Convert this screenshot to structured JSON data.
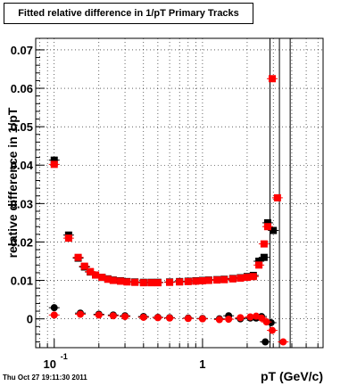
{
  "title": "Fitted relative difference in 1/pT  Primary Tracks",
  "timestamp": "Thu Oct 27 19:11:30 2011",
  "chart_data": {
    "type": "scatter",
    "title": "Fitted relative difference in 1/pT  Primary Tracks",
    "xlabel": "pT (GeV/c)",
    "ylabel": "relative difference in 1/pT",
    "xscale": "log",
    "xlim": [
      0.075,
      6.5
    ],
    "ylim": [
      -0.0075,
      0.073
    ],
    "grid": true,
    "x_tick_labels": [
      {
        "x": 0.1,
        "label": "10",
        "sup": "-1"
      },
      {
        "x": 1,
        "label": "1",
        "sup": ""
      }
    ],
    "y_ticks": [
      0,
      0.01,
      0.02,
      0.03,
      0.04,
      0.05,
      0.06,
      0.07
    ],
    "y_tick_labels": [
      "0",
      "0.01",
      "0.02",
      "0.03",
      "0.04",
      "0.05",
      "0.06",
      "0.07"
    ],
    "colors": {
      "black_series": "#000000",
      "red_series": "#ff0000"
    },
    "vertical_lines_x": [
      2.85,
      3.3,
      3.9
    ],
    "series": [
      {
        "color": "black",
        "marker": "square",
        "points": [
          [
            0.1,
            0.0413
          ],
          [
            0.125,
            0.0218
          ],
          [
            0.145,
            0.0158
          ],
          [
            0.16,
            0.0135
          ],
          [
            0.175,
            0.0122
          ],
          [
            0.19,
            0.0114
          ],
          [
            0.21,
            0.0108
          ],
          [
            0.23,
            0.0104
          ],
          [
            0.25,
            0.0101
          ],
          [
            0.28,
            0.0099
          ],
          [
            0.31,
            0.0097
          ],
          [
            0.35,
            0.0096
          ],
          [
            0.4,
            0.0095
          ],
          [
            0.45,
            0.0095
          ],
          [
            0.5,
            0.0095
          ],
          [
            0.6,
            0.0096
          ],
          [
            0.7,
            0.0097
          ],
          [
            0.8,
            0.0098
          ],
          [
            0.9,
            0.0099
          ],
          [
            1.0,
            0.01
          ],
          [
            1.1,
            0.0101
          ],
          [
            1.25,
            0.0102
          ],
          [
            1.4,
            0.0103
          ],
          [
            1.6,
            0.0105
          ],
          [
            1.8,
            0.0107
          ],
          [
            2.0,
            0.011
          ],
          [
            2.2,
            0.0113
          ],
          [
            2.4,
            0.015
          ],
          [
            2.6,
            0.016
          ],
          [
            2.75,
            0.025
          ],
          [
            3.0,
            0.023
          ]
        ]
      },
      {
        "color": "red",
        "marker": "square",
        "points": [
          [
            0.1,
            0.0402
          ],
          [
            0.125,
            0.021
          ],
          [
            0.145,
            0.016
          ],
          [
            0.16,
            0.0137
          ],
          [
            0.175,
            0.0123
          ],
          [
            0.19,
            0.0114
          ],
          [
            0.21,
            0.0108
          ],
          [
            0.23,
            0.0103
          ],
          [
            0.25,
            0.01
          ],
          [
            0.28,
            0.0098
          ],
          [
            0.31,
            0.0096
          ],
          [
            0.35,
            0.0095
          ],
          [
            0.4,
            0.0094
          ],
          [
            0.45,
            0.0094
          ],
          [
            0.5,
            0.0094
          ],
          [
            0.6,
            0.0095
          ],
          [
            0.7,
            0.0096
          ],
          [
            0.8,
            0.0097
          ],
          [
            0.9,
            0.0098
          ],
          [
            1.0,
            0.0099
          ],
          [
            1.1,
            0.01
          ],
          [
            1.25,
            0.0101
          ],
          [
            1.4,
            0.0102
          ],
          [
            1.6,
            0.0104
          ],
          [
            1.8,
            0.0106
          ],
          [
            2.0,
            0.0108
          ],
          [
            2.2,
            0.011
          ],
          [
            2.4,
            0.014
          ],
          [
            2.6,
            0.0195
          ],
          [
            2.75,
            0.024
          ],
          [
            2.95,
            0.0625
          ],
          [
            3.2,
            0.0315
          ]
        ]
      },
      {
        "color": "black",
        "marker": "circle",
        "points": [
          [
            0.1,
            0.0029
          ],
          [
            0.15,
            0.0015
          ],
          [
            0.2,
            0.0012
          ],
          [
            0.25,
            0.001
          ],
          [
            0.3,
            0.0008
          ],
          [
            0.4,
            0.0006
          ],
          [
            0.5,
            0.0004
          ],
          [
            0.6,
            0.0003
          ],
          [
            0.8,
            0.0002
          ],
          [
            1.0,
            0.0001
          ],
          [
            1.3,
            0.0
          ],
          [
            1.5,
            0.0008
          ],
          [
            1.8,
            0.0
          ],
          [
            2.1,
            0.0002
          ],
          [
            2.3,
            0.0002
          ],
          [
            2.5,
            0.0006
          ],
          [
            2.65,
            -0.006
          ],
          [
            2.9,
            -0.001
          ]
        ]
      },
      {
        "color": "red",
        "marker": "circle",
        "points": [
          [
            0.1,
            0.001
          ],
          [
            0.15,
            0.0012
          ],
          [
            0.2,
            0.001
          ],
          [
            0.25,
            0.0008
          ],
          [
            0.3,
            0.0006
          ],
          [
            0.4,
            0.0004
          ],
          [
            0.5,
            0.0003
          ],
          [
            0.6,
            0.0002
          ],
          [
            0.8,
            0.0001
          ],
          [
            1.0,
            0.0
          ],
          [
            1.3,
            -0.0002
          ],
          [
            1.5,
            -0.0001
          ],
          [
            1.8,
            0.0003
          ],
          [
            2.1,
            0.0005
          ],
          [
            2.3,
            0.0007
          ],
          [
            2.5,
            0.0002
          ],
          [
            2.7,
            -0.0008
          ],
          [
            2.95,
            -0.003
          ],
          [
            3.5,
            -0.006
          ]
        ]
      }
    ]
  }
}
